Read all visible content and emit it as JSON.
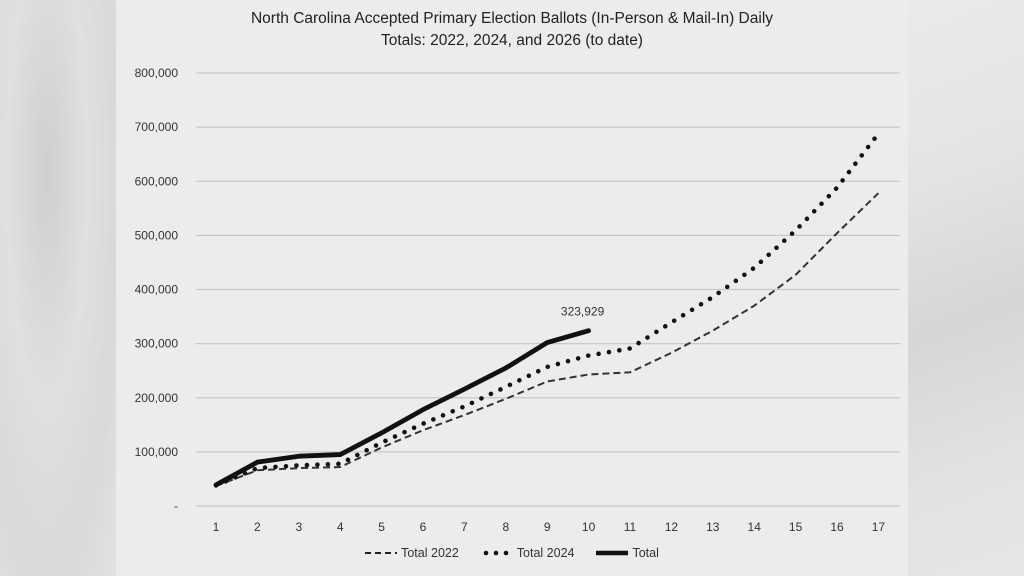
{
  "chart_data": {
    "type": "line",
    "title_line1": "North Carolina Accepted Primary Election Ballots (In-Person & Mail-In) Daily",
    "title_line2": "Totals: 2022, 2024, and 2026 (to date)",
    "xlabel": "",
    "ylabel": "",
    "x": [
      1,
      2,
      3,
      4,
      5,
      6,
      7,
      8,
      9,
      10,
      11,
      12,
      13,
      14,
      15,
      16,
      17
    ],
    "x_tick_labels": [
      "1",
      "2",
      "3",
      "4",
      "5",
      "6",
      "7",
      "8",
      "9",
      "10",
      "11",
      "12",
      "13",
      "14",
      "15",
      "16",
      "17"
    ],
    "ylim": [
      0,
      800000
    ],
    "y_ticks": [
      0,
      100000,
      200000,
      300000,
      400000,
      500000,
      600000,
      700000,
      800000
    ],
    "y_tick_labels": [
      "-",
      "100,000",
      "200,000",
      "300,000",
      "400,000",
      "500,000",
      "600,000",
      "700,000",
      "800,000"
    ],
    "grid": true,
    "legend_position": "bottom",
    "series": [
      {
        "name": "Total 2022",
        "style": "dashed",
        "values": [
          37000,
          66000,
          70000,
          72000,
          108000,
          140000,
          168000,
          198000,
          230000,
          243000,
          247000,
          283000,
          324000,
          370000,
          427000,
          504000,
          578000
        ]
      },
      {
        "name": "Total 2024",
        "style": "dotted",
        "values": [
          38000,
          70000,
          75000,
          78000,
          117000,
          152000,
          184000,
          220000,
          257000,
          278000,
          291000,
          339000,
          386000,
          440000,
          509000,
          588000,
          688000
        ]
      },
      {
        "name": "Total",
        "style": "solid",
        "values": [
          39000,
          81000,
          92000,
          95000,
          135000,
          178000,
          216000,
          255000,
          302000,
          323929
        ]
      }
    ],
    "annotations": [
      {
        "series": "Total",
        "x": 10,
        "text": "323,929"
      }
    ]
  },
  "legend": {
    "items": [
      {
        "label": "Total 2022",
        "style": "dashed"
      },
      {
        "label": "Total 2024",
        "style": "dotted"
      },
      {
        "label": "Total",
        "style": "solid"
      }
    ]
  },
  "colors": {
    "line": "#111111",
    "grid": "#c8c8c8",
    "panel": "#ececec",
    "text": "#333333"
  }
}
